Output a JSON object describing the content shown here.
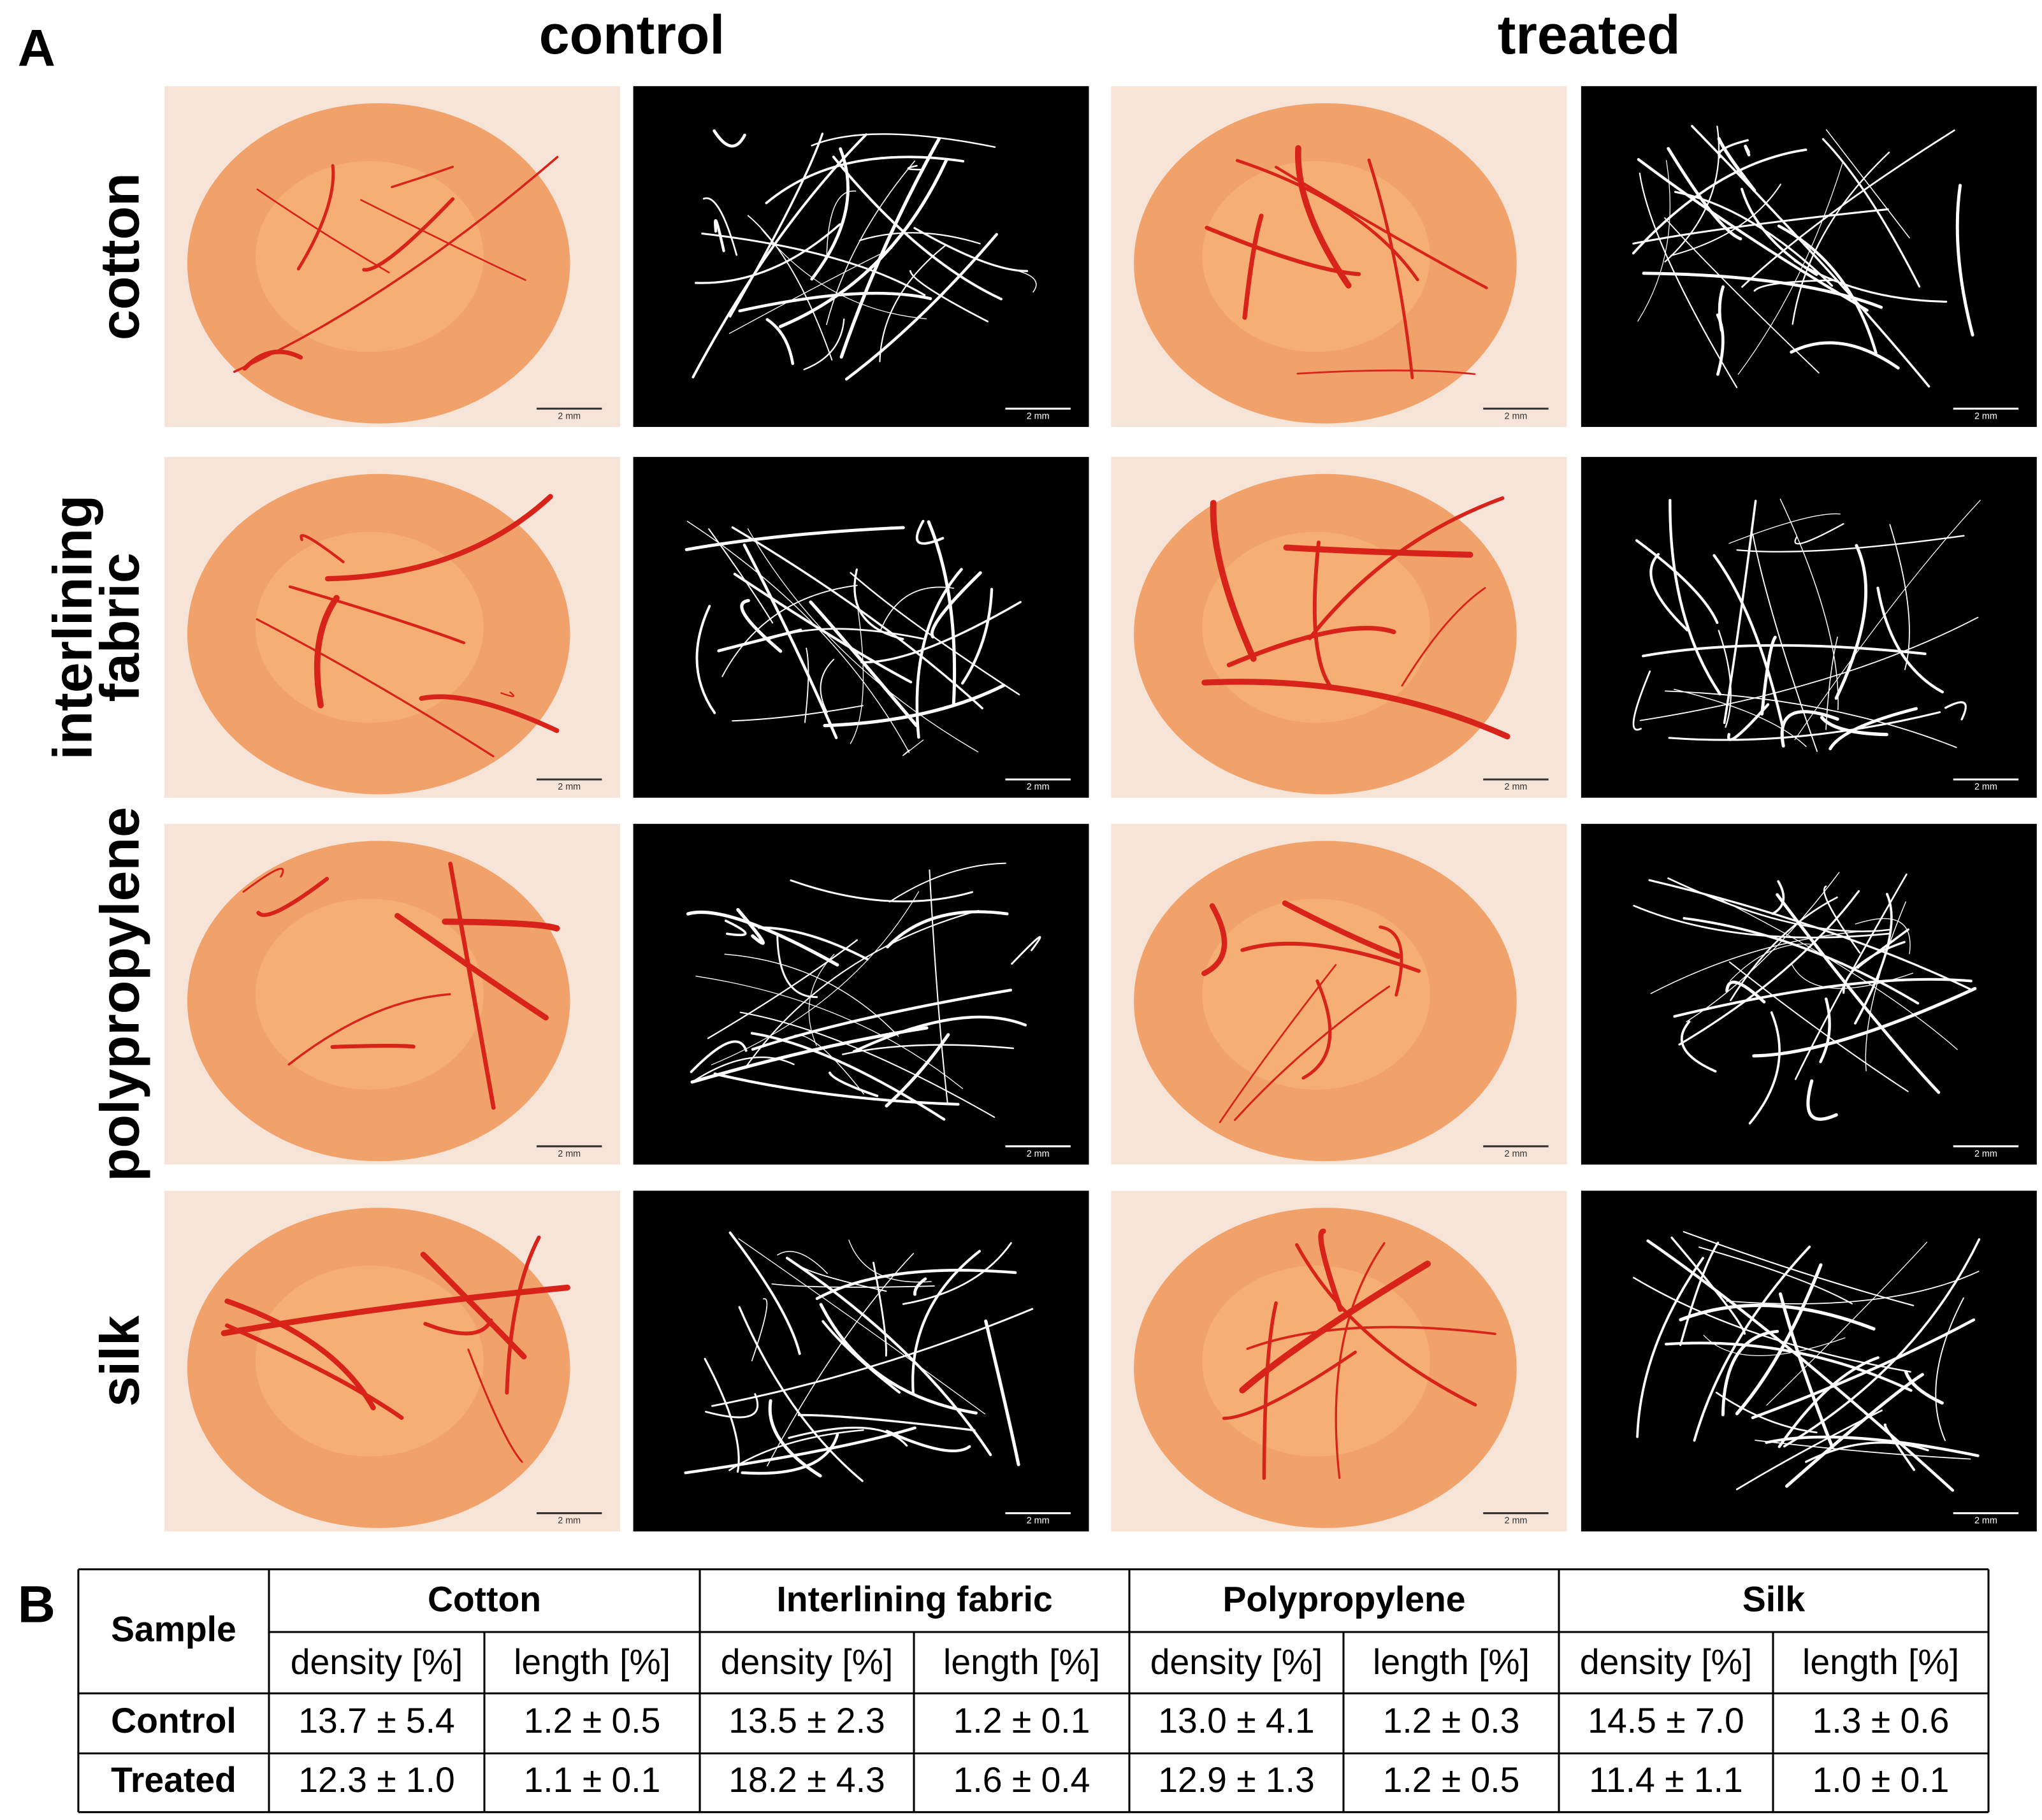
{
  "panel_a": {
    "label": "A",
    "columns": [
      "control",
      "treated"
    ],
    "rows": [
      [
        "cotton"
      ],
      [
        "interlining",
        "fabric"
      ],
      [
        "polypropylene"
      ],
      [
        "silk"
      ]
    ],
    "scale_bar": "2 mm"
  },
  "panel_b": {
    "label": "B",
    "table": {
      "corner": "Sample",
      "groups": [
        "Cotton",
        "Interlining fabric",
        "Polypropylene",
        "Silk"
      ],
      "subheader": [
        "density [%]",
        "length [%]"
      ],
      "rows": [
        [
          "Control",
          "13.7 ± 5.4",
          "1.2 ± 0.5",
          "13.5 ± 2.3",
          "1.2 ± 0.1",
          "13.0 ± 4.1",
          "1.2 ± 0.3",
          "14.5 ± 7.0",
          "1.3 ± 0.6"
        ],
        [
          "Treated",
          "12.3 ± 1.0",
          "1.1 ± 0.1",
          "18.2 ± 4.3",
          "1.6 ± 0.4",
          "12.9 ± 1.3",
          "1.2 ± 0.5",
          "11.4 ± 1.1",
          "1.0 ± 0.1"
        ]
      ]
    }
  }
}
